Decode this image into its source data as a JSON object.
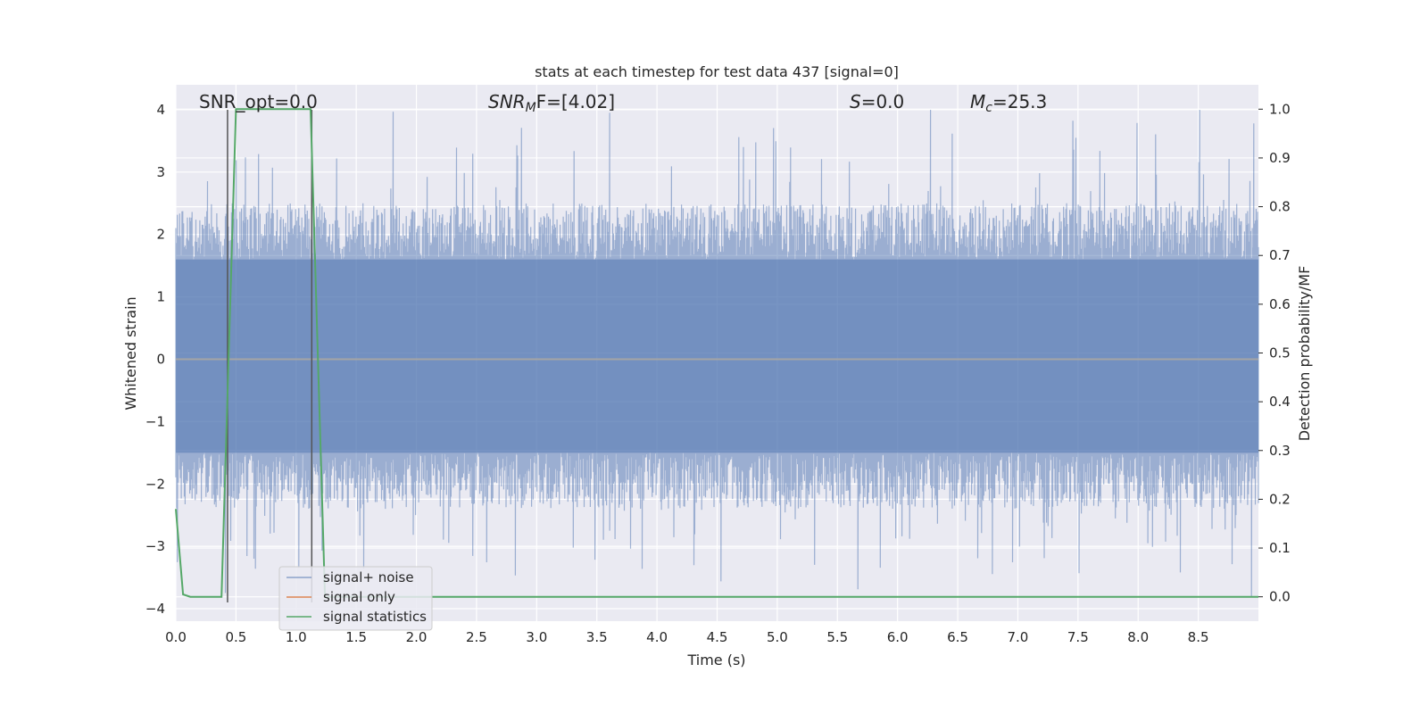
{
  "chart_data": {
    "type": "line",
    "title": "stats at each timestep for test data 437 [signal=0]",
    "xlabel": "Time (s)",
    "ylabel": "Whitened strain",
    "ylabel_right": "Detection probability/MF",
    "xlim": [
      0.0,
      9.0
    ],
    "ylim": [
      -4.2,
      4.4
    ],
    "ylim_right": [
      -0.05,
      1.05
    ],
    "x_ticks": [
      "0.0",
      "0.5",
      "1.0",
      "1.5",
      "2.0",
      "2.5",
      "3.0",
      "3.5",
      "4.0",
      "4.5",
      "5.0",
      "5.5",
      "6.0",
      "6.5",
      "7.0",
      "7.5",
      "8.0",
      "8.5"
    ],
    "y_ticks": [
      "4",
      "3",
      "2",
      "1",
      "0",
      "−1",
      "−2",
      "−3",
      "−4"
    ],
    "y_ticks_right": [
      "1.0",
      "0.9",
      "0.8",
      "0.7",
      "0.6",
      "0.5",
      "0.4",
      "0.3",
      "0.2",
      "0.1",
      "0.0"
    ],
    "annotations": {
      "snr_opt": "SNR_opt=0.0",
      "snr_mf_main": "SNR",
      "snr_mf_sub": "M",
      "snr_mf_rest": "F=[4.02]",
      "s_main": "S",
      "s_rest": "=0.0",
      "mc_main": "M",
      "mc_sub": "c",
      "mc_rest": "=25.3"
    },
    "grid": true,
    "legend_position": "lower-left",
    "series": [
      {
        "name": "signal+ noise",
        "color": "#4c72b0",
        "alpha": 0.5,
        "kind": "noise",
        "amplitude_band": [
          -1.5,
          1.6
        ],
        "peak_max": 4.0,
        "peak_min": -3.9
      },
      {
        "name": "signal only",
        "color": "#dd8452",
        "values_x": [
          0.0,
          9.0
        ],
        "values_y": [
          0.0,
          0.0
        ]
      },
      {
        "name": "signal statistics",
        "color": "#55a868",
        "axis": "right",
        "x": [
          0.0,
          0.06,
          0.12,
          0.38,
          0.5,
          1.12,
          1.24,
          1.3,
          9.0
        ],
        "y": [
          0.18,
          0.005,
          0.0,
          0.0,
          1.0,
          1.0,
          0.0,
          0.0,
          0.0
        ]
      }
    ],
    "vertical_markers": [
      {
        "x": 0.43,
        "y_from": -3.9,
        "y_to": 4.0,
        "color": "#555555"
      },
      {
        "x": 1.13,
        "y_from": -3.9,
        "y_to": 4.0,
        "color": "#555555"
      }
    ]
  },
  "colors": {
    "plot_bg": "#eaeaf2",
    "grid": "#ffffff",
    "noise": "#4c72b0",
    "signal_only": "#dd8452",
    "statistics": "#55a868"
  }
}
